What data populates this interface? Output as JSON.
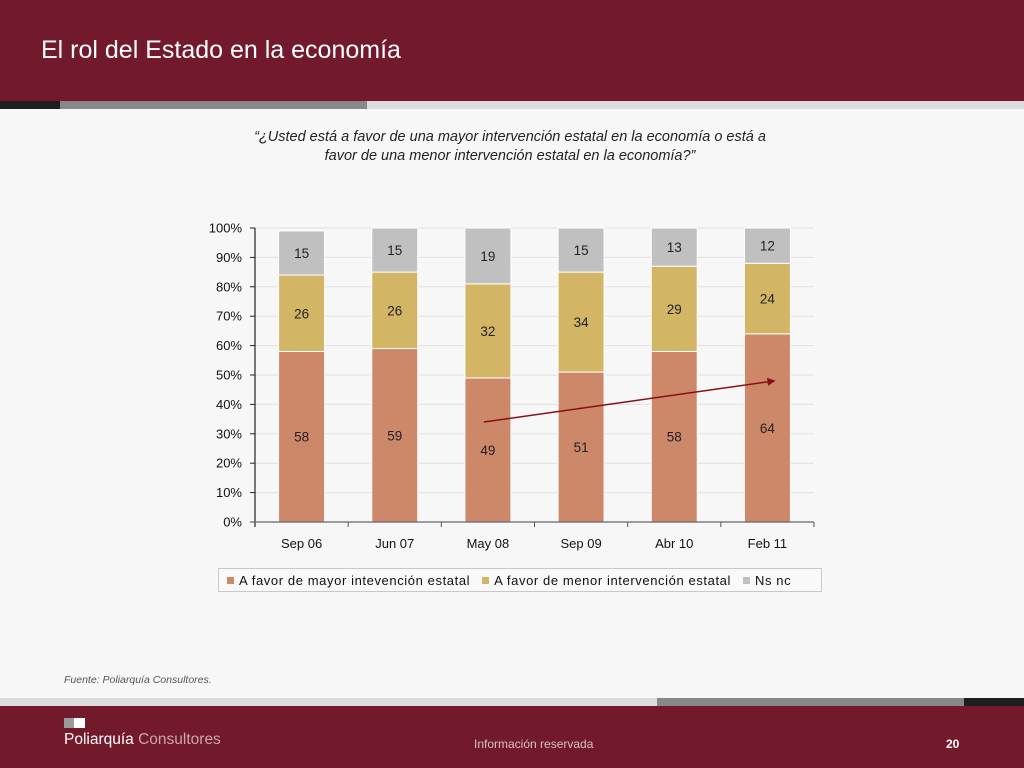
{
  "header": {
    "title": "El rol del Estado en la economía"
  },
  "question": {
    "line1": "“¿Usted está a favor de una mayor intervención estatal en la economía o está a",
    "line2": "favor de una menor intervención estatal en la economía?”"
  },
  "chart_data": {
    "type": "bar",
    "stacked": true,
    "percent_stacked": true,
    "categories": [
      "Sep 06",
      "Jun 07",
      "May 08",
      "Sep 09",
      "Abr 10",
      "Feb 11"
    ],
    "series": [
      {
        "name": "A favor de mayor intevención estatal",
        "color": "#cd8769",
        "values": [
          58,
          59,
          49,
          51,
          58,
          64
        ]
      },
      {
        "name": "A favor de menor intervención estatal",
        "color": "#d3b566",
        "values": [
          26,
          26,
          32,
          34,
          29,
          24
        ]
      },
      {
        "name": "Ns nc",
        "color": "#c0c0c0",
        "values": [
          15,
          15,
          19,
          15,
          13,
          12
        ]
      }
    ],
    "ylim": [
      0,
      100
    ],
    "yticks": [
      "0%",
      "10%",
      "20%",
      "30%",
      "40%",
      "50%",
      "60%",
      "70%",
      "80%",
      "90%",
      "100%"
    ],
    "grid": true,
    "legend_position": "bottom",
    "annotation": {
      "type": "trend-arrow",
      "from_category": "May 08",
      "to_category": "Feb 11",
      "from_value": 34,
      "to_value": 48,
      "color": "#8b0f14"
    },
    "title": "",
    "xlabel": "",
    "ylabel": ""
  },
  "source": "Fuente: Poliarquía Consultores.",
  "footer": {
    "logo_bold": "Poliarquía",
    "logo_light": " Consultores",
    "note": "Información reservada",
    "page": "20"
  }
}
